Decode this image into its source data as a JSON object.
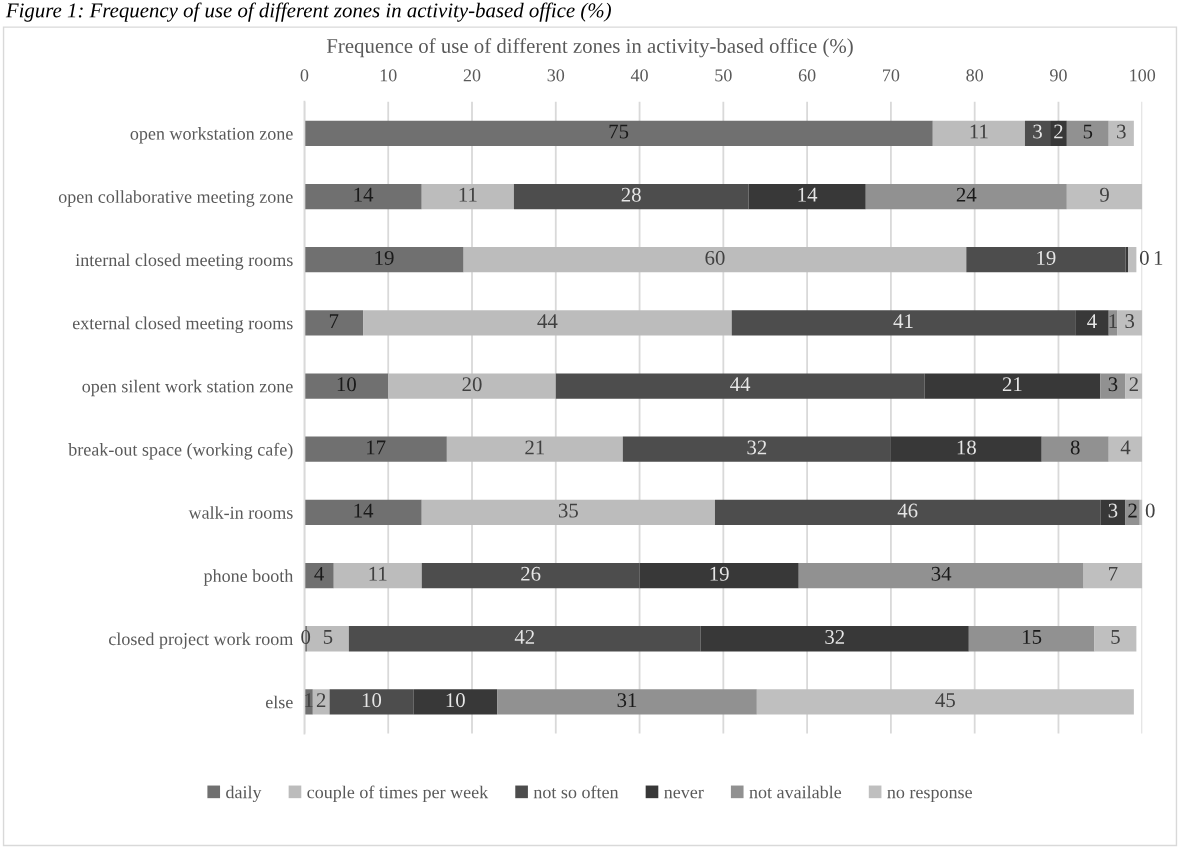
{
  "chart_data": {
    "type": "bar",
    "orientation": "horizontal",
    "stacked": true,
    "title": "Frequence of use of different zones in activity-based office (%)",
    "annotations": [
      "Figure 1: Frequency of use of different zones in activity-based office (%)"
    ],
    "categories": [
      "open workstation zone",
      "open collaborative meeting zone",
      "internal closed meeting rooms",
      "external closed meeting rooms",
      "open silent work station zone",
      "break-out space (working cafe)",
      "walk-in rooms",
      "phone booth",
      "closed project work room",
      "else"
    ],
    "series": [
      {
        "name": "daily",
        "color": "#707070",
        "values": [
          75,
          14,
          19,
          7,
          10,
          17,
          14,
          3.5,
          0.3,
          1
        ],
        "value_labels": [
          "75",
          "14",
          "19",
          "7",
          "10",
          "17",
          "14",
          "4",
          "0",
          "1"
        ]
      },
      {
        "name": "couple of times per week",
        "color": "#bcbcbc",
        "values": [
          11,
          11,
          60,
          44,
          20,
          21,
          35,
          10.5,
          5,
          2
        ],
        "value_labels": [
          "11",
          "11",
          "60",
          "44",
          "20",
          "21",
          "35",
          "11",
          "5",
          "2"
        ]
      },
      {
        "name": "not so often",
        "color": "#4d4d4d",
        "values": [
          3,
          28,
          19,
          41,
          44,
          32,
          46,
          26,
          42,
          10
        ],
        "value_labels": [
          "3",
          "28",
          "19",
          "41",
          "44",
          "32",
          "46",
          "26",
          "42",
          "10"
        ]
      },
      {
        "name": "never",
        "color": "#383838",
        "values": [
          2,
          14,
          0.3,
          4,
          21,
          18,
          3,
          19,
          32,
          10
        ],
        "value_labels": [
          "2",
          "14",
          "0",
          "4",
          "21",
          "18",
          "3",
          "19",
          "32",
          "10"
        ]
      },
      {
        "name": "not available",
        "color": "#919191",
        "values": [
          5,
          24,
          0,
          1,
          3,
          8,
          1.7,
          34,
          15,
          31
        ],
        "value_labels": [
          "5",
          "24",
          null,
          "1",
          "3",
          "8",
          "2",
          "34",
          "15",
          "31"
        ]
      },
      {
        "name": "no response",
        "color": "#bfbfbf",
        "values": [
          3,
          9,
          1,
          3,
          2,
          4,
          0.3,
          7,
          5,
          45
        ],
        "value_labels": [
          "3",
          "9",
          "1",
          "3",
          "2",
          "4",
          "0",
          "7",
          "5",
          "45"
        ]
      }
    ],
    "xlim": [
      0,
      100
    ],
    "xticks": [
      0,
      10,
      20,
      30,
      40,
      50,
      60,
      70,
      80,
      90,
      100
    ],
    "grid": "x",
    "legend": "bottom"
  }
}
